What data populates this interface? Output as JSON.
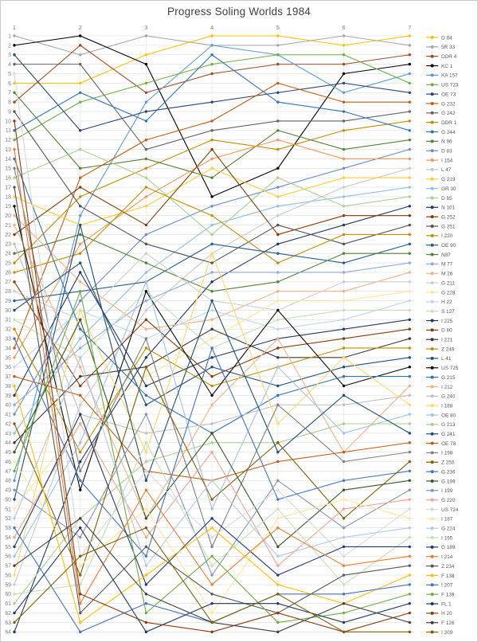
{
  "chart_data": {
    "type": "line",
    "subtype": "bump-rank-chart",
    "title": "Progress Soling Worlds 1984",
    "x_ticks": [
      "1",
      "2",
      "3",
      "4",
      "5",
      "6",
      "7"
    ],
    "x_axis_position": "top",
    "y_axis": {
      "min": 1,
      "max": 64,
      "step": 1,
      "inverted": true,
      "meaning": "overall position after each race"
    },
    "grid": true,
    "legend_position": "right",
    "series": [
      {
        "name": "D 84",
        "color": "#FFC000",
        "values": [
          6,
          6,
          3,
          1,
          1,
          2,
          1
        ]
      },
      {
        "name": "5R 33",
        "color": "#A6A6A6",
        "values": [
          1,
          3,
          1,
          2,
          2,
          1,
          2
        ]
      },
      {
        "name": "DDR 4",
        "color": "#9E4A26",
        "values": [
          8,
          2,
          7,
          5,
          4,
          4,
          3
        ]
      },
      {
        "name": "KC 1",
        "color": "#000000",
        "values": [
          2,
          1,
          4,
          18,
          15,
          5,
          4
        ]
      },
      {
        "name": "KA 157",
        "color": "#5B9BD5",
        "values": [
          48,
          20,
          8,
          2,
          3,
          7,
          5
        ]
      },
      {
        "name": "US 723",
        "color": "#70AD47",
        "values": [
          12,
          8,
          6,
          4,
          3,
          3,
          6
        ]
      },
      {
        "name": "OE 73",
        "color": "#264478",
        "values": [
          3,
          11,
          9,
          8,
          7,
          6,
          7
        ]
      },
      {
        "name": "G 232",
        "color": "#C55A11",
        "values": [
          34,
          16,
          12,
          10,
          6,
          8,
          8
        ]
      },
      {
        "name": "G 242",
        "color": "#636363",
        "values": [
          4,
          4,
          13,
          11,
          10,
          10,
          9
        ]
      },
      {
        "name": "DDR 1",
        "color": "#BF8F00",
        "values": [
          25,
          18,
          15,
          12,
          13,
          11,
          10
        ]
      },
      {
        "name": "G 244",
        "color": "#2E75B6",
        "values": [
          11,
          7,
          10,
          3,
          8,
          9,
          11
        ]
      },
      {
        "name": "N 96",
        "color": "#548235",
        "values": [
          7,
          15,
          14,
          16,
          11,
          13,
          12
        ]
      },
      {
        "name": "D 83",
        "color": "#698ED0",
        "values": [
          41,
          29,
          22,
          19,
          17,
          15,
          13
        ]
      },
      {
        "name": "I 154",
        "color": "#F1975A",
        "values": [
          35,
          23,
          18,
          14,
          12,
          14,
          14
        ]
      },
      {
        "name": "L 47",
        "color": "#C9C9C9",
        "values": [
          59,
          40,
          30,
          24,
          20,
          17,
          15
        ]
      },
      {
        "name": "G 219",
        "color": "#FFCD33",
        "values": [
          18,
          21,
          19,
          15,
          18,
          16,
          16
        ]
      },
      {
        "name": "GR 30",
        "color": "#8CC0E4",
        "values": [
          43,
          33,
          26,
          21,
          19,
          18,
          17
        ]
      },
      {
        "name": "D 85",
        "color": "#A9D18E",
        "values": [
          16,
          13,
          16,
          22,
          16,
          19,
          18
        ]
      },
      {
        "name": "N 101",
        "color": "#203864",
        "values": [
          64,
          46,
          35,
          27,
          23,
          21,
          19
        ]
      },
      {
        "name": "G 252",
        "color": "#833C00",
        "values": [
          22,
          17,
          21,
          13,
          22,
          20,
          20
        ]
      },
      {
        "name": "G 251",
        "color": "#525252",
        "values": [
          9,
          19,
          23,
          25,
          21,
          23,
          21
        ]
      },
      {
        "name": "I 220",
        "color": "#BF9000",
        "values": [
          26,
          24,
          17,
          20,
          25,
          22,
          22
        ]
      },
      {
        "name": "OE 90",
        "color": "#255E91",
        "values": [
          29,
          28,
          27,
          23,
          24,
          25,
          23
        ]
      },
      {
        "name": "N87",
        "color": "#538135",
        "values": [
          24,
          22,
          25,
          28,
          27,
          24,
          24
        ]
      },
      {
        "name": "M 77",
        "color": "#8FAADC",
        "values": [
          40,
          34,
          29,
          26,
          26,
          26,
          25
        ]
      },
      {
        "name": "M 26",
        "color": "#F4B183",
        "values": [
          20,
          27,
          32,
          31,
          28,
          28,
          26
        ]
      },
      {
        "name": "G 211",
        "color": "#D0CECE",
        "values": [
          28,
          31,
          24,
          29,
          30,
          27,
          27
        ]
      },
      {
        "name": "G 228",
        "color": "#FFE699",
        "values": [
          51,
          42,
          37,
          33,
          29,
          29,
          28
        ]
      },
      {
        "name": "H 22",
        "color": "#BDD7EE",
        "values": [
          36,
          30,
          33,
          30,
          32,
          31,
          29
        ]
      },
      {
        "name": "S 127",
        "color": "#C5E0B4",
        "values": [
          31,
          35,
          28,
          34,
          31,
          30,
          30
        ]
      },
      {
        "name": "I 225",
        "color": "#203864",
        "values": [
          39,
          26,
          38,
          35,
          33,
          32,
          31
        ]
      },
      {
        "name": "D 80",
        "color": "#843C0C",
        "values": [
          27,
          38,
          31,
          37,
          34,
          33,
          32
        ]
      },
      {
        "name": "I 221",
        "color": "#3B3838",
        "values": [
          44,
          37,
          36,
          32,
          35,
          35,
          33
        ]
      },
      {
        "name": "Z 249",
        "color": "#BF8F00",
        "values": [
          32,
          45,
          34,
          38,
          36,
          34,
          34
        ]
      },
      {
        "name": "L 41",
        "color": "#1F4E79",
        "values": [
          30,
          25,
          40,
          36,
          38,
          36,
          35
        ]
      },
      {
        "name": "US 725",
        "color": "#0D0D0D",
        "values": [
          19,
          49,
          28,
          39,
          30,
          38,
          36
        ]
      },
      {
        "name": "G 215",
        "color": "#2E74B5",
        "values": [
          14,
          32,
          39,
          43,
          39,
          37,
          37
        ]
      },
      {
        "name": "I 212",
        "color": "#F4B183",
        "values": [
          21,
          36,
          52,
          40,
          33,
          45,
          38
        ]
      },
      {
        "name": "G 240",
        "color": "#BFBFBF",
        "values": [
          23,
          41,
          43,
          42,
          40,
          40,
          39
        ]
      },
      {
        "name": "I 188",
        "color": "#FFD966",
        "values": [
          58,
          30,
          45,
          24,
          42,
          35,
          40
        ]
      },
      {
        "name": "OE 80",
        "color": "#9DC3E6",
        "values": [
          56,
          44,
          27,
          51,
          36,
          43,
          41
        ]
      },
      {
        "name": "G 213",
        "color": "#A9D18E",
        "values": [
          61,
          52,
          46,
          44,
          44,
          42,
          42
        ]
      },
      {
        "name": "G 241",
        "color": "#1F4E79",
        "values": [
          50,
          21,
          48,
          29,
          45,
          39,
          43
        ]
      },
      {
        "name": "OE 78",
        "color": "#C55A11",
        "values": [
          37,
          39,
          47,
          48,
          46,
          45,
          44
        ]
      },
      {
        "name": "I 198",
        "color": "#808080",
        "values": [
          15,
          47,
          33,
          55,
          40,
          46,
          45
        ]
      },
      {
        "name": "Z 250",
        "color": "#806000",
        "values": [
          42,
          58,
          36,
          50,
          44,
          52,
          46
        ]
      },
      {
        "name": "G 236",
        "color": "#4472C4",
        "values": [
          33,
          48,
          56,
          34,
          50,
          48,
          47
        ]
      },
      {
        "name": "G 199",
        "color": "#375623",
        "values": [
          45,
          31,
          52,
          43,
          55,
          49,
          48
        ]
      },
      {
        "name": "I 199",
        "color": "#8496B0",
        "values": [
          49,
          54,
          41,
          58,
          48,
          53,
          49
        ]
      },
      {
        "name": "G 220",
        "color": "#EFA393",
        "values": [
          54,
          42,
          54,
          45,
          57,
          51,
          50
        ]
      },
      {
        "name": "US 724",
        "color": "#D9D9D9",
        "values": [
          5,
          56,
          47,
          54,
          49,
          56,
          51
        ]
      },
      {
        "name": "I 187",
        "color": "#FFE797",
        "values": [
          46,
          57,
          51,
          62,
          52,
          50,
          52
        ]
      },
      {
        "name": "G 224",
        "color": "#B4C7E7",
        "values": [
          52,
          35,
          57,
          48,
          56,
          54,
          53
        ]
      },
      {
        "name": "I 195",
        "color": "#C5E0B4",
        "values": [
          60,
          59,
          44,
          57,
          51,
          59,
          54
        ]
      },
      {
        "name": "G 189",
        "color": "#223A70",
        "values": [
          55,
          41,
          59,
          52,
          58,
          55,
          55
        ]
      },
      {
        "name": "I 214",
        "color": "#ED7D31",
        "values": [
          13,
          61,
          49,
          59,
          53,
          57,
          56
        ]
      },
      {
        "name": "Z 234",
        "color": "#595959",
        "values": [
          17,
          62,
          55,
          60,
          62,
          58,
          57
        ]
      },
      {
        "name": "F 138",
        "color": "#FFC000",
        "values": [
          38,
          63,
          58,
          53,
          59,
          61,
          58
        ]
      },
      {
        "name": "I 207",
        "color": "#4472C4",
        "values": [
          53,
          64,
          61,
          63,
          60,
          60,
          59
        ]
      },
      {
        "name": "F 139",
        "color": "#70AD47",
        "values": [
          47,
          28,
          62,
          56,
          63,
          62,
          60
        ]
      },
      {
        "name": "FL 1",
        "color": "#1F3864",
        "values": [
          62,
          53,
          64,
          61,
          61,
          63,
          61
        ]
      },
      {
        "name": "H 20",
        "color": "#8B3A0E",
        "values": [
          10,
          60,
          63,
          64,
          62,
          64,
          62
        ]
      },
      {
        "name": "F 126",
        "color": "#404040",
        "values": [
          57,
          52,
          60,
          63,
          64,
          61,
          63
        ]
      },
      {
        "name": "I 209",
        "color": "#7F6000",
        "values": [
          63,
          56,
          53,
          63,
          60,
          64,
          64
        ]
      }
    ]
  },
  "colors": {
    "background": "#FFFFFF",
    "frame_border": "#C9C9C9",
    "grid_line": "#E4E4E4",
    "vertical_grid_line": "#E8E8E8",
    "axis_text": "#7F7F7F",
    "legend_text": "#595959",
    "title_text": "#3F3F3F"
  }
}
